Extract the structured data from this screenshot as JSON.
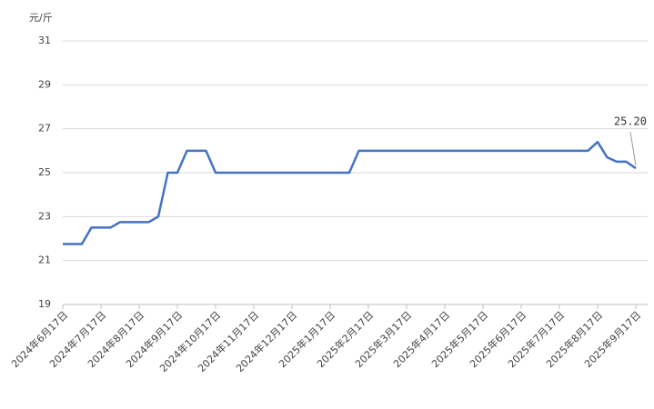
{
  "chart_data": {
    "type": "line",
    "y_label": "元/斤",
    "categories": [
      "2024年6月17日",
      null,
      null,
      null,
      "2024年7月17日",
      null,
      null,
      null,
      "2024年8月17日",
      null,
      null,
      null,
      "2024年9月17日",
      null,
      null,
      null,
      "2024年10月17日",
      null,
      null,
      null,
      "2024年11月17日",
      null,
      null,
      null,
      "2024年12月17日",
      null,
      null,
      null,
      "2025年1月17日",
      null,
      null,
      null,
      "2025年2月17日",
      null,
      null,
      null,
      "2025年3月17日",
      null,
      null,
      null,
      "2025年4月17日",
      null,
      null,
      null,
      "2025年5月17日",
      null,
      null,
      null,
      "2025年6月17日",
      null,
      null,
      null,
      "2025年7月17日",
      null,
      null,
      null,
      "2025年8月17日",
      null,
      null,
      null,
      "2025年9月17日"
    ],
    "series": [
      {
        "color": "#4472c4",
        "values": [
          21.75,
          21.75,
          21.75,
          22.5,
          22.5,
          22.5,
          22.75,
          22.75,
          22.75,
          22.75,
          23,
          25,
          25,
          26,
          26,
          26,
          25,
          25,
          25,
          25,
          25,
          25,
          25,
          25,
          25,
          25,
          25,
          25,
          25,
          25,
          25,
          26,
          26,
          26,
          26,
          26,
          26,
          26,
          26,
          26,
          26,
          26,
          26,
          26,
          26,
          26,
          26,
          26,
          26,
          26,
          26,
          26,
          26,
          26,
          26,
          26,
          26.4,
          25.7,
          25.5,
          25.5,
          25.2
        ],
        "value_labels": [
          null,
          null,
          null,
          null,
          null,
          null,
          null,
          null,
          null,
          null,
          null,
          null,
          null,
          null,
          null,
          null,
          null,
          null,
          null,
          null,
          null,
          null,
          null,
          null,
          null,
          null,
          null,
          null,
          null,
          null,
          null,
          null,
          null,
          null,
          null,
          null,
          null,
          null,
          null,
          null,
          null,
          null,
          null,
          null,
          null,
          null,
          null,
          null,
          null,
          null,
          null,
          null,
          null,
          null,
          null,
          null,
          null,
          null,
          null,
          null,
          "25.20"
        ]
      }
    ],
    "ylim": [
      19,
      31
    ],
    "yticks": [
      19,
      21,
      23,
      25,
      27,
      29,
      31
    ],
    "grid": true
  }
}
